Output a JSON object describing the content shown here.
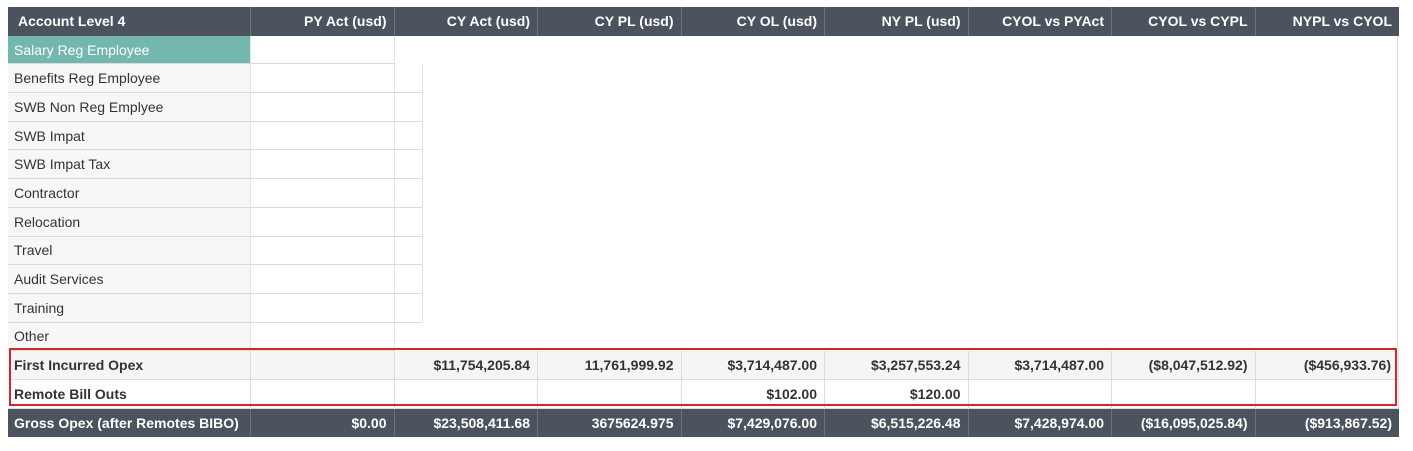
{
  "columns": [
    "Account Level 4",
    "PY Act (usd)",
    "CY Act (usd)",
    "CY PL (usd)",
    "CY OL (usd)",
    "NY PL (usd)",
    "CYOL vs PYAct",
    "CYOL vs CYPL",
    "NYPL vs CYOL"
  ],
  "accounts": [
    "Salary Reg Employee",
    "Benefits Reg Employee",
    "SWB Non Reg Emplyee",
    "SWB Impat",
    "SWB Impat Tax",
    "Contractor",
    "Relocation",
    "Travel",
    "Audit Services",
    "Training",
    "Other"
  ],
  "summary_rows": [
    {
      "label": "First Incurred Opex",
      "values": [
        "",
        "$11,754,205.84",
        "11,761,999.92",
        "$3,714,487.00",
        "$3,257,553.24",
        "$3,714,487.00",
        "($8,047,512.92)",
        "($456,933.76)"
      ]
    },
    {
      "label": "Remote Bill Outs",
      "values": [
        "",
        "",
        "",
        "$102.00",
        "$120.00",
        "",
        "",
        ""
      ]
    }
  ],
  "footer": {
    "label": "Gross Opex (after Remotes BIBO)",
    "values": [
      "$0.00",
      "$23,508,411.68",
      "3675624.975",
      "$7,429,076.00",
      "$6,515,226.48",
      "$7,428,974.00",
      "($16,095,025.84)",
      "($913,867.52)"
    ]
  },
  "selected_account_index": 0,
  "colors": {
    "header_bg": "#4a535e",
    "selected_bg": "#73b7ae",
    "highlight_border": "#d6262c"
  }
}
